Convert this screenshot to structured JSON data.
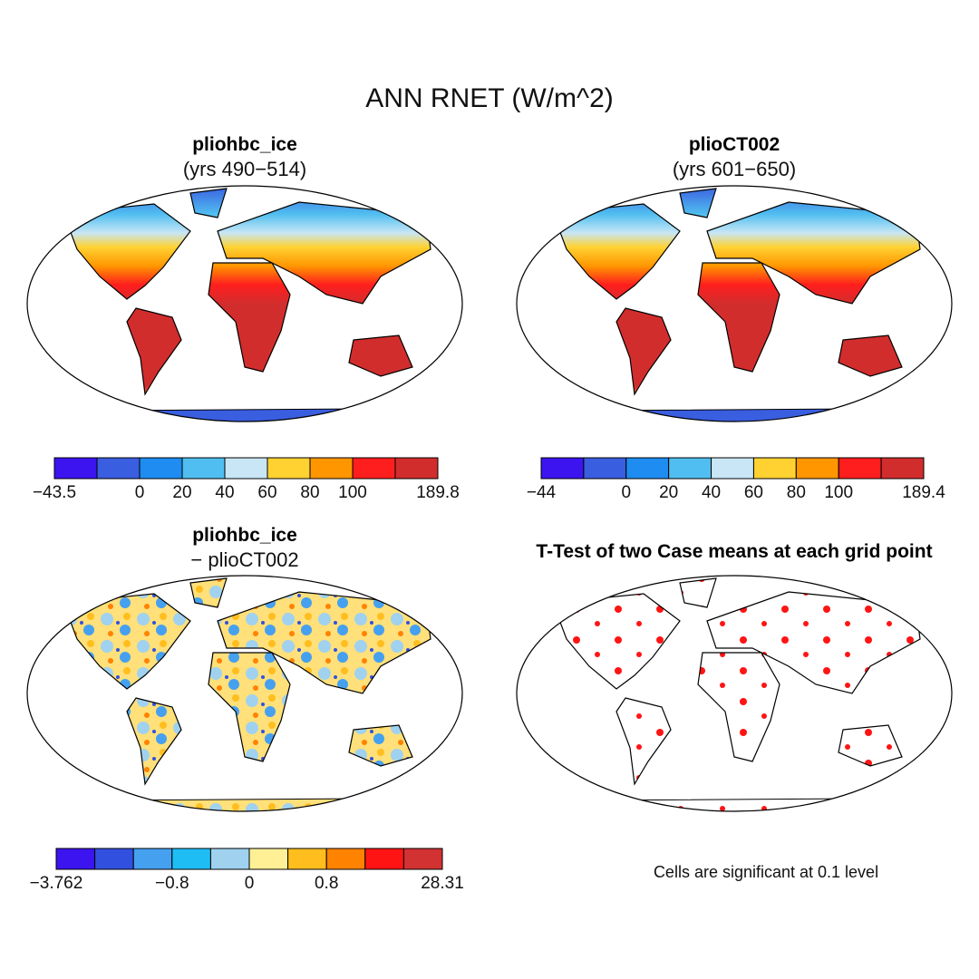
{
  "title": "ANN RNET (W/m^2)",
  "panels": [
    {
      "title": "pliohbc_ice",
      "subtitle": "(yrs 490−514)",
      "colorbar": {
        "labels": [
          "−43.5",
          null,
          "0",
          "20",
          "40",
          "60",
          "80",
          "100",
          null,
          "189.8"
        ],
        "colors": [
          "#3c14f0",
          "#3a5ee0",
          "#1e8cf0",
          "#50bef0",
          "#c8e6f5",
          "#ffd232",
          "#ff9600",
          "#ff1e1e",
          "#d22d2d"
        ]
      }
    },
    {
      "title": "plioCT002",
      "subtitle": "(yrs 601−650)",
      "colorbar": {
        "labels": [
          "−44",
          null,
          "0",
          "20",
          "40",
          "60",
          "80",
          "100",
          null,
          "189.4"
        ],
        "colors": [
          "#3c14f0",
          "#3a5ee0",
          "#1e8cf0",
          "#50bef0",
          "#c8e6f5",
          "#ffd232",
          "#ff9600",
          "#ff1e1e",
          "#d22d2d"
        ]
      }
    },
    {
      "title": "pliohbc_ice",
      "subtitle": "− plioCT002",
      "colorbar": {
        "labels": [
          "−3.762",
          null,
          null,
          "−0.8",
          null,
          "0",
          null,
          "0.8",
          null,
          null,
          "28.31"
        ],
        "colors": [
          "#3c14f0",
          "#3250e0",
          "#46a0f0",
          "#1ebef5",
          "#a0d2f0",
          "#fff096",
          "#ffbe1e",
          "#ff8200",
          "#ff1414",
          "#d23232"
        ]
      }
    },
    {
      "title": "T-Test of two Case means at each grid point",
      "note": "Cells are significant at 0.1 level"
    }
  ]
}
